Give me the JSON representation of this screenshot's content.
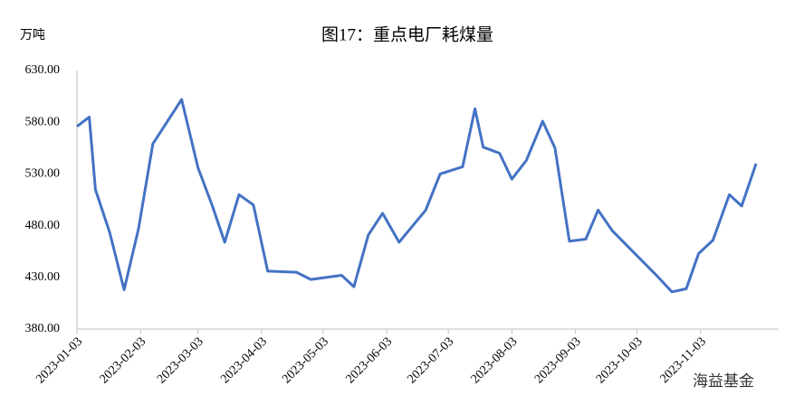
{
  "chart_data": {
    "type": "line",
    "title": "图17：重点电厂耗煤量",
    "y_label": "万吨",
    "watermark": "海益基金",
    "x": [
      "2023-01-03",
      "2023-01-09",
      "2023-01-12",
      "2023-01-19",
      "2023-01-26",
      "2023-02-02",
      "2023-02-09",
      "2023-02-23",
      "2023-03-03",
      "2023-03-10",
      "2023-03-16",
      "2023-03-23",
      "2023-03-30",
      "2023-04-06",
      "2023-04-20",
      "2023-04-27",
      "2023-05-12",
      "2023-05-18",
      "2023-05-25",
      "2023-06-01",
      "2023-06-09",
      "2023-06-22",
      "2023-06-29",
      "2023-07-10",
      "2023-07-16",
      "2023-07-20",
      "2023-07-28",
      "2023-08-03",
      "2023-08-10",
      "2023-08-18",
      "2023-08-24",
      "2023-08-31",
      "2023-09-08",
      "2023-09-14",
      "2023-09-21",
      "2023-10-12",
      "2023-10-20",
      "2023-10-27",
      "2023-11-02",
      "2023-11-09",
      "2023-11-17",
      "2023-11-23",
      "2023-11-30"
    ],
    "values": [
      576,
      585,
      515,
      473,
      418,
      477,
      559,
      602,
      536,
      499,
      464,
      510,
      500,
      436,
      435,
      428,
      432,
      421,
      471,
      492,
      464,
      495,
      530,
      537,
      593,
      556,
      550,
      525,
      543,
      581,
      555,
      465,
      467,
      495,
      475,
      433,
      416,
      419,
      453,
      466,
      510,
      499,
      540
    ],
    "color": "#4472c4",
    "xlim": [
      "2023-01-03",
      "2023-12-11"
    ],
    "xticks": [
      "2023-01-03",
      "2023-02-03",
      "2023-03-03",
      "2023-04-03",
      "2023-05-03",
      "2023-06-03",
      "2023-07-03",
      "2023-08-03",
      "2023-09-03",
      "2023-10-03",
      "2023-11-03"
    ],
    "ylim": [
      380,
      630
    ],
    "yticks": [
      {
        "value": 380,
        "label": "380.00"
      },
      {
        "value": 430,
        "label": "430.00"
      },
      {
        "value": 480,
        "label": "480.00"
      },
      {
        "value": 530,
        "label": "530.00"
      },
      {
        "value": 580,
        "label": "580.00"
      },
      {
        "value": 630,
        "label": "630.00"
      }
    ],
    "grid": false
  }
}
